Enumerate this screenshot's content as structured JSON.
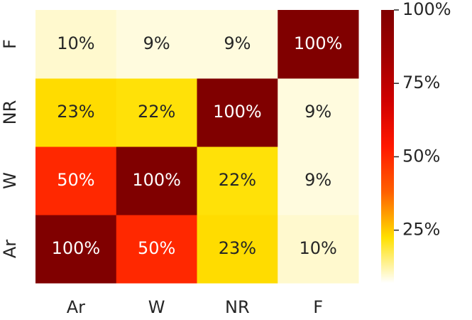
{
  "chart_data": {
    "type": "heatmap",
    "x_categories": [
      "Ar",
      "W",
      "NR",
      "F"
    ],
    "y_categories": [
      "Ar",
      "W",
      "NR",
      "F"
    ],
    "values": [
      [
        100,
        50,
        23,
        10
      ],
      [
        50,
        100,
        22,
        9
      ],
      [
        23,
        22,
        100,
        9
      ],
      [
        10,
        9,
        9,
        100
      ]
    ],
    "value_labels": [
      [
        "100%",
        "50%",
        "23%",
        "10%"
      ],
      [
        "50%",
        "100%",
        "22%",
        "9%"
      ],
      [
        "23%",
        "22%",
        "100%",
        "9%"
      ],
      [
        "10%",
        "9%",
        "9%",
        "100%"
      ]
    ],
    "colormap": [
      "#ffffff",
      "#ffe000",
      "#ff6000",
      "#ff1800",
      "#d00000",
      "#a00000",
      "#800000"
    ],
    "clim": [
      7,
      100
    ],
    "cticks": [
      {
        "value": 25,
        "label": "25%"
      },
      {
        "value": 50,
        "label": "50%"
      },
      {
        "value": 75,
        "label": "75%"
      },
      {
        "value": 100,
        "label": "100%"
      }
    ]
  }
}
